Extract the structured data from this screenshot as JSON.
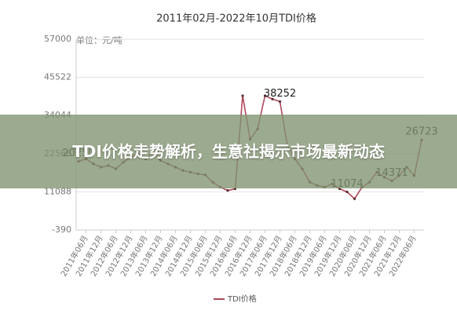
{
  "chart_data": {
    "type": "line",
    "title": "2011年02月-2022年10月TDI价格",
    "y_unit": "单位：元/吨",
    "categories": [
      null,
      "2011年06月",
      null,
      "2011年12月",
      null,
      "2012年06月",
      null,
      "2012年12月",
      null,
      "2013年06月",
      null,
      "2013年12月",
      null,
      "2014年06月",
      null,
      "2014年12月",
      null,
      "2015年06月",
      null,
      "2015年12月",
      null,
      "2016年06月",
      null,
      "2016年12月",
      null,
      "2017年06月",
      null,
      "2017年12月",
      null,
      "2018年06月",
      null,
      "2018年12月",
      null,
      "2019年06月",
      null,
      "2019年12月",
      null,
      "2020年06月",
      null,
      "2020年12月",
      null,
      "2021年06月",
      null,
      "2021年12月",
      null,
      "2022年06月",
      null
    ],
    "series": [
      {
        "name": "TDI价格",
        "color": "#b0485a",
        "values": [
          20250,
          21000,
          19500,
          18500,
          19000,
          18000,
          20000,
          21500,
          22500,
          21000,
          23000,
          20500,
          19500,
          18500,
          17500,
          17000,
          16500,
          16200,
          14000,
          12500,
          11500,
          12000,
          40000,
          26900,
          30000,
          40000,
          39000,
          38252,
          25000,
          21000,
          18000,
          14000,
          13000,
          12500,
          13500,
          12000,
          11074,
          9000,
          12500,
          14000,
          17000,
          15500,
          14371,
          16000,
          18500,
          16000,
          26723
        ],
        "value_labels": [
          "20250",
          null,
          null,
          null,
          null,
          null,
          null,
          null,
          null,
          null,
          null,
          null,
          null,
          null,
          null,
          null,
          null,
          null,
          null,
          null,
          null,
          null,
          null,
          null,
          null,
          null,
          null,
          "38252",
          null,
          null,
          null,
          null,
          null,
          null,
          null,
          null,
          "11074",
          null,
          null,
          null,
          null,
          null,
          "14371",
          null,
          null,
          null,
          "26723"
        ]
      }
    ],
    "ylim": [
      -390,
      57000
    ],
    "yticks": [
      -390,
      11088,
      22566,
      34044,
      45522,
      57000
    ],
    "grid": true,
    "legend": "bottom"
  },
  "banner": {
    "title": "TDI价格走势解析，生意社揭示市场最新动态"
  }
}
